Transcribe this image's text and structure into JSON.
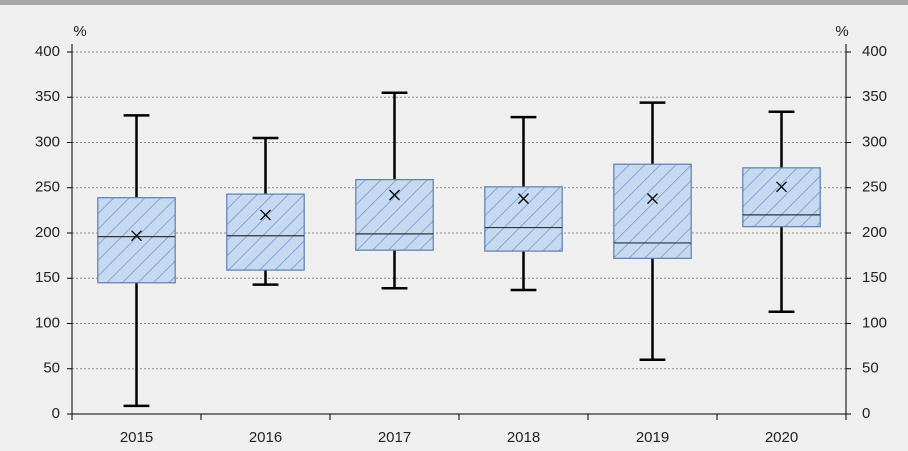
{
  "chart_data": {
    "type": "box",
    "y_label": "%",
    "y2_label": "%",
    "categories": [
      "2015",
      "2016",
      "2017",
      "2018",
      "2019",
      "2020"
    ],
    "series": [
      {
        "color": "#c6d9f1",
        "hatch": "#6f9bd0",
        "edge": "#5a7fb0",
        "min": [
          9,
          143,
          139,
          137,
          60,
          113
        ],
        "q1": [
          145,
          159,
          181,
          180,
          172,
          207
        ],
        "median": [
          196,
          197,
          199,
          206,
          189,
          220
        ],
        "q3": [
          239,
          243,
          259,
          251,
          276,
          272
        ],
        "max": [
          330,
          305,
          355,
          328,
          344,
          334
        ],
        "mean": [
          197,
          220,
          242,
          238,
          238,
          251
        ]
      }
    ],
    "ylim": [
      0,
      400
    ],
    "yticks": [
      0,
      50,
      100,
      150,
      200,
      250,
      300,
      350,
      400
    ],
    "y2lim": [
      0,
      400
    ],
    "y2ticks": [
      0,
      50,
      100,
      150,
      200,
      250,
      300,
      350,
      400
    ],
    "grid": true
  }
}
